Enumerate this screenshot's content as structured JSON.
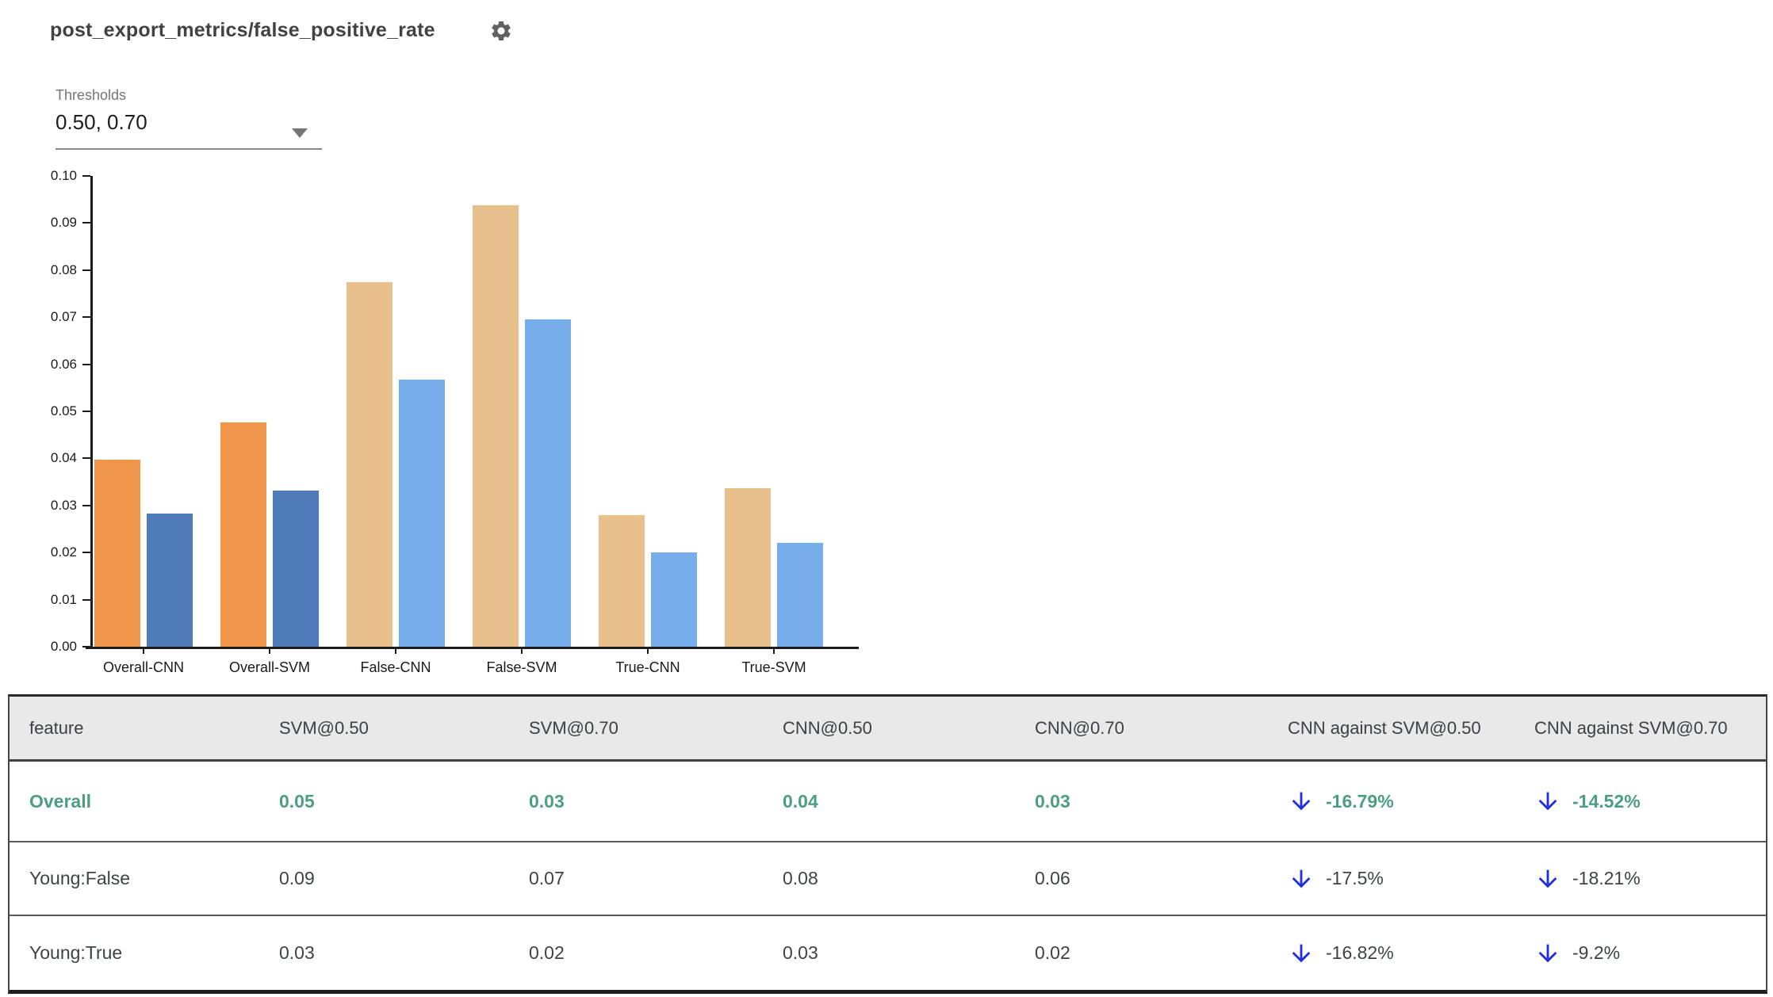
{
  "header": {
    "title": "post_export_metrics/false_positive_rate"
  },
  "controls": {
    "thresholds_label": "Thresholds",
    "thresholds_value": "0.50, 0.70"
  },
  "chart_data": {
    "type": "bar",
    "title": "post_export_metrics/false_positive_rate",
    "categories": [
      "Overall-CNN",
      "Overall-SVM",
      "False-CNN",
      "False-SVM",
      "True-CNN",
      "True-SVM"
    ],
    "series": [
      {
        "name": "threshold 0.50",
        "values": [
          0.0398,
          0.0477,
          0.0775,
          0.0938,
          0.028,
          0.0337
        ],
        "colors": [
          "#f0964a",
          "#f0964a",
          "#e8c08c",
          "#e8c08c",
          "#e8c08c",
          "#e8c08c"
        ]
      },
      {
        "name": "threshold 0.70",
        "values": [
          0.0282,
          0.0332,
          0.0568,
          0.0695,
          0.0201,
          0.0221
        ],
        "colors": [
          "#4d7cb8",
          "#4d7cb8",
          "#76aeec",
          "#76aeec",
          "#76aeec",
          "#76aeec"
        ]
      }
    ],
    "xlabel": "",
    "ylabel": "",
    "ylim": [
      0,
      0.1
    ],
    "yticks": [
      "0.00",
      "0.01",
      "0.02",
      "0.03",
      "0.04",
      "0.05",
      "0.06",
      "0.07",
      "0.08",
      "0.09",
      "0.10"
    ],
    "grid": false,
    "legend": "none"
  },
  "table": {
    "columns": [
      "feature",
      "SVM@0.50",
      "SVM@0.70",
      "CNN@0.50",
      "CNN@0.70",
      "CNN against SVM@0.50",
      "CNN against SVM@0.70"
    ],
    "rows": [
      {
        "feature": "Overall",
        "values": [
          "0.05",
          "0.03",
          "0.04",
          "0.03"
        ],
        "deltas": [
          "-16.79%",
          "-14.52%"
        ],
        "trend": "decrease"
      },
      {
        "feature": "Young:False",
        "values": [
          "0.09",
          "0.07",
          "0.08",
          "0.06"
        ],
        "deltas": [
          "-17.5%",
          "-18.21%"
        ],
        "trend": "decrease"
      },
      {
        "feature": "Young:True",
        "values": [
          "0.03",
          "0.02",
          "0.03",
          "0.02"
        ],
        "deltas": [
          "-16.82%",
          "-9.2%"
        ],
        "trend": "decrease"
      }
    ]
  },
  "colors": {
    "accent_green": "#4c9e80",
    "arrow_blue": "#2030e0",
    "bar_orange": "#f0964a",
    "bar_dark_blue": "#4d7cb8",
    "bar_tan": "#e8c08c",
    "bar_light_blue": "#76aeec",
    "header_bg": "#e9e9ea"
  }
}
